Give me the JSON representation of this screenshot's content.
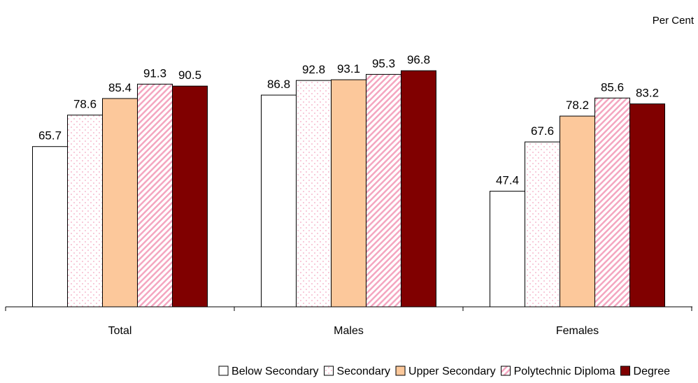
{
  "chart_data": {
    "type": "bar",
    "unit_label": "Per Cent",
    "categories": [
      "Total",
      "Males",
      "Females"
    ],
    "series": [
      {
        "name": "Below  Secondary",
        "values": [
          65.7,
          86.8,
          47.4
        ],
        "fill": "white",
        "color": "#FFFFFF"
      },
      {
        "name": "Secondary",
        "values": [
          78.6,
          92.8,
          67.6
        ],
        "fill": "dots",
        "color": "#F4A6C0"
      },
      {
        "name": "Upper Secondary",
        "values": [
          85.4,
          93.1,
          78.2
        ],
        "fill": "solid",
        "color": "#FCC89B"
      },
      {
        "name": "Polytechnic Diploma",
        "values": [
          91.3,
          95.3,
          85.6
        ],
        "fill": "diagonal-stripes",
        "color": "#F4A6C0"
      },
      {
        "name": "Degree",
        "values": [
          90.5,
          96.8,
          83.2
        ],
        "fill": "solid",
        "color": "#800000"
      }
    ],
    "ylim": [
      0,
      100
    ],
    "grid": false,
    "legend_position": "bottom"
  }
}
